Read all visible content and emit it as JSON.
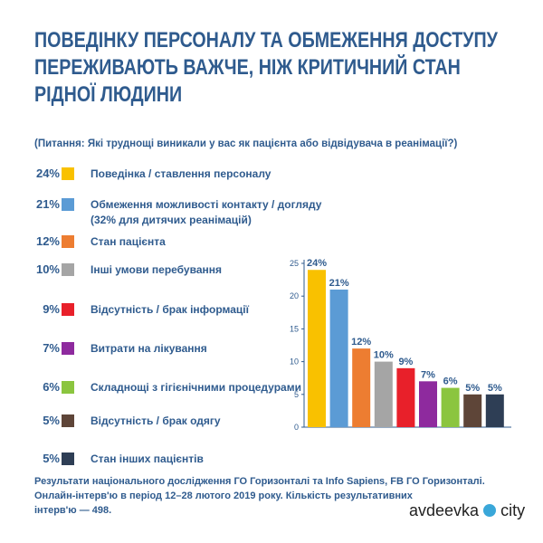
{
  "header": {
    "title": [
      "ПОВЕДІНКУ ПЕРСОНАЛУ ТА ОБМЕЖЕННЯ ДОСТУПУ",
      "ПЕРЕЖИВАЮТЬ ВАЖЧЕ, НІЖ КРИТИЧНИЙ СТАН",
      "РІДНОЇ ЛЮДИНИ"
    ],
    "subtitle": "(Питання: Які труднощі виникали у вас як пацієнта або відвідувача в реанімації?)"
  },
  "chart_data": {
    "type": "bar",
    "categories": [
      "Поведінка / ставлення персоналу",
      "Обмеження можливості контакту / догляду (32% для дитячих реанімацій)",
      "Стан пацієнта",
      "Інші умови перебування",
      "Відсутність / брак інформації",
      "Витрати на лікування",
      "Складнощі з гігієнічними процедурами",
      "Відсутність / брак одягу",
      "Стан інших пацієнтів"
    ],
    "values": [
      24,
      21,
      12,
      10,
      9,
      7,
      6,
      5,
      5
    ],
    "value_labels": [
      "24%",
      "21%",
      "12%",
      "10%",
      "9%",
      "7%",
      "6%",
      "5%",
      "5%"
    ],
    "colors": [
      "#f9c100",
      "#5b9bd5",
      "#ed7d31",
      "#a5a5a5",
      "#e8202a",
      "#8e2a9e",
      "#8bc53f",
      "#5e4538",
      "#2e3e55"
    ],
    "ylim": [
      0,
      25
    ],
    "yticks": [
      0,
      5,
      10,
      15,
      20,
      25
    ]
  },
  "footer": [
    "Результати національного дослідження ГО Горизонталі та Info Sapiens, FB ГО Горизонталі.",
    "Онлайн-інтерв'ю в період 12–28 лютого 2019 року. Кількість результативних",
    "інтерв'ю — 498."
  ],
  "watermark": [
    "avdeevka",
    "city"
  ]
}
